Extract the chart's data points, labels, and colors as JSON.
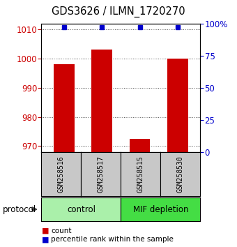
{
  "title": "GDS3626 / ILMN_1720270",
  "samples": [
    "GSM258516",
    "GSM258517",
    "GSM258515",
    "GSM258530"
  ],
  "counts": [
    998.0,
    1003.0,
    972.5,
    1000.0
  ],
  "percentile_ranks": [
    97,
    97,
    97,
    97
  ],
  "ylim_left": [
    968,
    1012
  ],
  "ylim_right": [
    0,
    100
  ],
  "yticks_left": [
    970,
    980,
    990,
    1000,
    1010
  ],
  "yticks_right": [
    0,
    25,
    50,
    75,
    100
  ],
  "groups": [
    {
      "label": "control",
      "n_samples": 2,
      "color": "#aaf0aa"
    },
    {
      "label": "MIF depletion",
      "n_samples": 2,
      "color": "#44dd44"
    }
  ],
  "bar_color": "#cc0000",
  "marker_color": "#0000cc",
  "bar_width": 0.55,
  "left_axis_color": "#cc0000",
  "right_axis_color": "#0000cc",
  "legend_count_color": "#cc0000",
  "legend_pct_color": "#0000cc",
  "protocol_label": "protocol",
  "legend_count_label": "count",
  "legend_pct_label": "percentile rank within the sample"
}
